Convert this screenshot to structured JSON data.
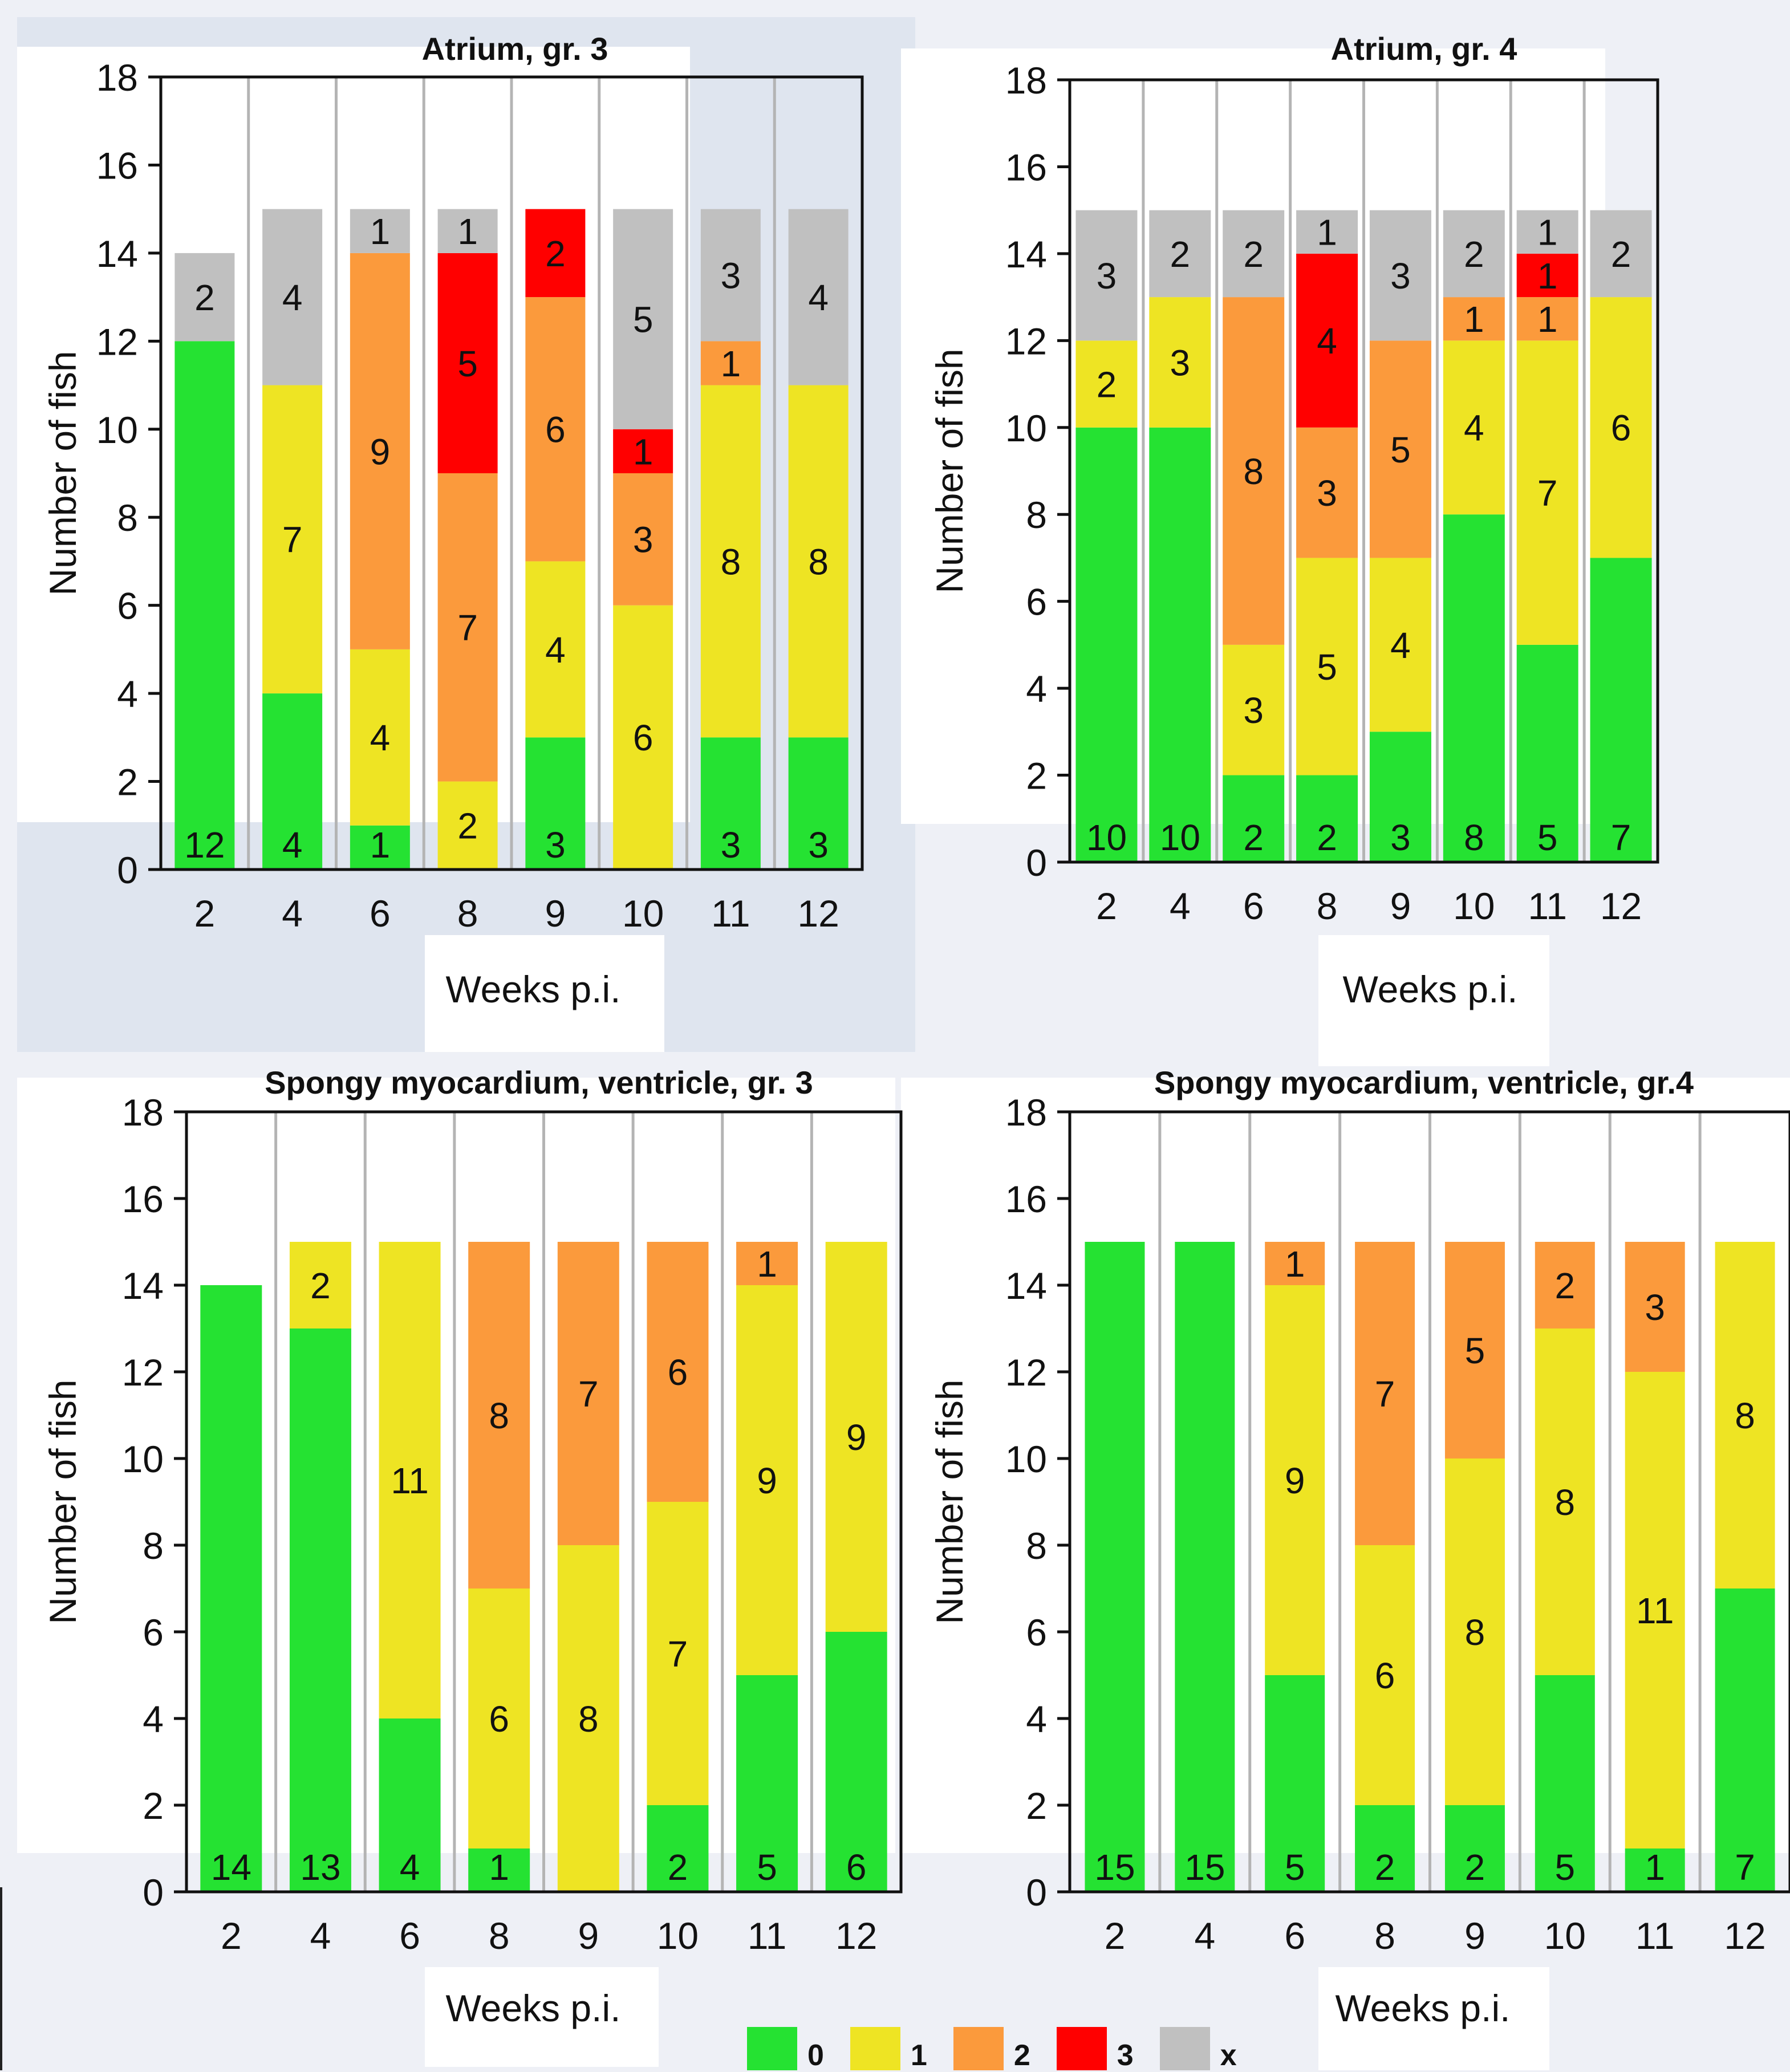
{
  "legend": [
    {
      "label": "0",
      "color": "#25e232"
    },
    {
      "label": "1",
      "color": "#eee423"
    },
    {
      "label": "2",
      "color": "#fb9a3c"
    },
    {
      "label": "3",
      "color": "#ff0000"
    },
    {
      "label": "x",
      "color": "#c0c0c0"
    }
  ],
  "chart_data": [
    {
      "type": "bar",
      "stacked": true,
      "title": "Atrium, gr. 3",
      "xlabel": "Weeks p.i.",
      "ylabel": "Number of fish",
      "ylim": [
        0,
        18
      ],
      "yticks": [
        0,
        2,
        4,
        6,
        8,
        10,
        12,
        14,
        16,
        18
      ],
      "categories": [
        "2",
        "4",
        "6",
        "8",
        "9",
        "10",
        "11",
        "12"
      ],
      "series": [
        {
          "name": "0",
          "color": "#25e232",
          "values": [
            12,
            4,
            1,
            0,
            3,
            0,
            3,
            3
          ],
          "labels": [
            "12",
            "4",
            "1",
            "",
            "3",
            "",
            "3",
            "3"
          ]
        },
        {
          "name": "1",
          "color": "#eee423",
          "values": [
            0,
            7,
            4,
            2,
            4,
            6,
            8,
            8
          ],
          "labels": [
            "",
            "7",
            "4",
            "2",
            "4",
            "6",
            "8",
            "8"
          ]
        },
        {
          "name": "2",
          "color": "#fb9a3c",
          "values": [
            0,
            0,
            9,
            7,
            6,
            3,
            1,
            0
          ],
          "labels": [
            "",
            "",
            "9",
            "7",
            "6",
            "3",
            "1",
            ""
          ]
        },
        {
          "name": "3",
          "color": "#ff0000",
          "values": [
            0,
            0,
            0,
            5,
            2,
            1,
            0,
            0
          ],
          "labels": [
            "",
            "",
            "",
            "5",
            "2",
            "1",
            "",
            ""
          ]
        },
        {
          "name": "x",
          "color": "#c0c0c0",
          "values": [
            2,
            4,
            1,
            1,
            0,
            5,
            3,
            4
          ],
          "labels": [
            "2",
            "4",
            "1",
            "1",
            "",
            "5",
            "3",
            "4"
          ]
        }
      ]
    },
    {
      "type": "bar",
      "stacked": true,
      "title": "Atrium, gr. 4",
      "xlabel": "Weeks p.i.",
      "ylabel": "Number of fish",
      "ylim": [
        0,
        18
      ],
      "yticks": [
        0,
        2,
        4,
        6,
        8,
        10,
        12,
        14,
        16,
        18
      ],
      "categories": [
        "2",
        "4",
        "6",
        "8",
        "9",
        "10",
        "11",
        "12"
      ],
      "series": [
        {
          "name": "0",
          "color": "#25e232",
          "values": [
            10,
            10,
            2,
            2,
            3,
            8,
            5,
            7
          ],
          "labels": [
            "10",
            "10",
            "2",
            "2",
            "3",
            "8",
            "5",
            "7"
          ]
        },
        {
          "name": "1",
          "color": "#eee423",
          "values": [
            2,
            3,
            3,
            5,
            4,
            4,
            7,
            6
          ],
          "labels": [
            "2",
            "3",
            "3",
            "5",
            "4",
            "4",
            "7",
            "6"
          ]
        },
        {
          "name": "2",
          "color": "#fb9a3c",
          "values": [
            0,
            0,
            8,
            3,
            5,
            1,
            1,
            0
          ],
          "labels": [
            "",
            "",
            "8",
            "3",
            "5",
            "1",
            "1",
            ""
          ]
        },
        {
          "name": "3",
          "color": "#ff0000",
          "values": [
            0,
            0,
            0,
            4,
            0,
            0,
            1,
            0
          ],
          "labels": [
            "",
            "",
            "",
            "4",
            "",
            "",
            "1",
            ""
          ]
        },
        {
          "name": "x",
          "color": "#c0c0c0",
          "values": [
            3,
            2,
            2,
            1,
            3,
            2,
            1,
            2
          ],
          "labels": [
            "3",
            "2",
            "2",
            "1",
            "3",
            "2",
            "1",
            "2"
          ]
        }
      ]
    },
    {
      "type": "bar",
      "stacked": true,
      "title": "Spongy myocardium, ventricle, gr. 3",
      "xlabel": "Weeks p.i.",
      "ylabel": "Number of fish",
      "ylim": [
        0,
        18
      ],
      "yticks": [
        0,
        2,
        4,
        6,
        8,
        10,
        12,
        14,
        16,
        18
      ],
      "categories": [
        "2",
        "4",
        "6",
        "8",
        "9",
        "10",
        "11",
        "12"
      ],
      "series": [
        {
          "name": "0",
          "color": "#25e232",
          "values": [
            14,
            13,
            4,
            1,
            0,
            2,
            5,
            6
          ],
          "labels": [
            "14",
            "13",
            "4",
            "1",
            "",
            "2",
            "5",
            "6"
          ]
        },
        {
          "name": "1",
          "color": "#eee423",
          "values": [
            0,
            2,
            11,
            6,
            8,
            7,
            9,
            9
          ],
          "labels": [
            "",
            "2",
            "11",
            "6",
            "8",
            "7",
            "9",
            "9"
          ]
        },
        {
          "name": "2",
          "color": "#fb9a3c",
          "values": [
            0,
            0,
            0,
            8,
            7,
            6,
            1,
            0
          ],
          "labels": [
            "",
            "",
            "",
            "8",
            "7",
            "6",
            "1",
            ""
          ]
        },
        {
          "name": "3",
          "color": "#ff0000",
          "values": [
            0,
            0,
            0,
            0,
            0,
            0,
            0,
            0
          ],
          "labels": [
            "",
            "",
            "",
            "",
            "",
            "",
            "",
            ""
          ]
        },
        {
          "name": "x",
          "color": "#c0c0c0",
          "values": [
            0,
            0,
            0,
            0,
            0,
            0,
            0,
            0
          ],
          "labels": [
            "",
            "",
            "",
            "",
            "",
            "",
            "",
            ""
          ]
        }
      ]
    },
    {
      "type": "bar",
      "stacked": true,
      "title": "Spongy myocardium, ventricle, gr.4",
      "xlabel": "Weeks p.i.",
      "ylabel": "Number of fish",
      "ylim": [
        0,
        18
      ],
      "yticks": [
        0,
        2,
        4,
        6,
        8,
        10,
        12,
        14,
        16,
        18
      ],
      "categories": [
        "2",
        "4",
        "6",
        "8",
        "9",
        "10",
        "11",
        "12"
      ],
      "series": [
        {
          "name": "0",
          "color": "#25e232",
          "values": [
            15,
            15,
            5,
            2,
            2,
            5,
            1,
            7
          ],
          "labels": [
            "15",
            "15",
            "5",
            "2",
            "2",
            "5",
            "1",
            "7"
          ]
        },
        {
          "name": "1",
          "color": "#eee423",
          "values": [
            0,
            0,
            9,
            6,
            8,
            8,
            11,
            8
          ],
          "labels": [
            "",
            "",
            "9",
            "6",
            "8",
            "8",
            "11",
            "8"
          ]
        },
        {
          "name": "2",
          "color": "#fb9a3c",
          "values": [
            0,
            0,
            1,
            7,
            5,
            2,
            3,
            0
          ],
          "labels": [
            "",
            "",
            "1",
            "7",
            "5",
            "2",
            "3",
            ""
          ]
        },
        {
          "name": "3",
          "color": "#ff0000",
          "values": [
            0,
            0,
            0,
            0,
            0,
            0,
            0,
            0
          ],
          "labels": [
            "",
            "",
            "",
            "",
            "",
            "",
            "",
            ""
          ]
        },
        {
          "name": "x",
          "color": "#c0c0c0",
          "values": [
            0,
            0,
            0,
            0,
            0,
            0,
            0,
            0
          ],
          "labels": [
            "",
            "",
            "",
            "",
            "",
            "",
            "",
            ""
          ]
        }
      ]
    }
  ]
}
